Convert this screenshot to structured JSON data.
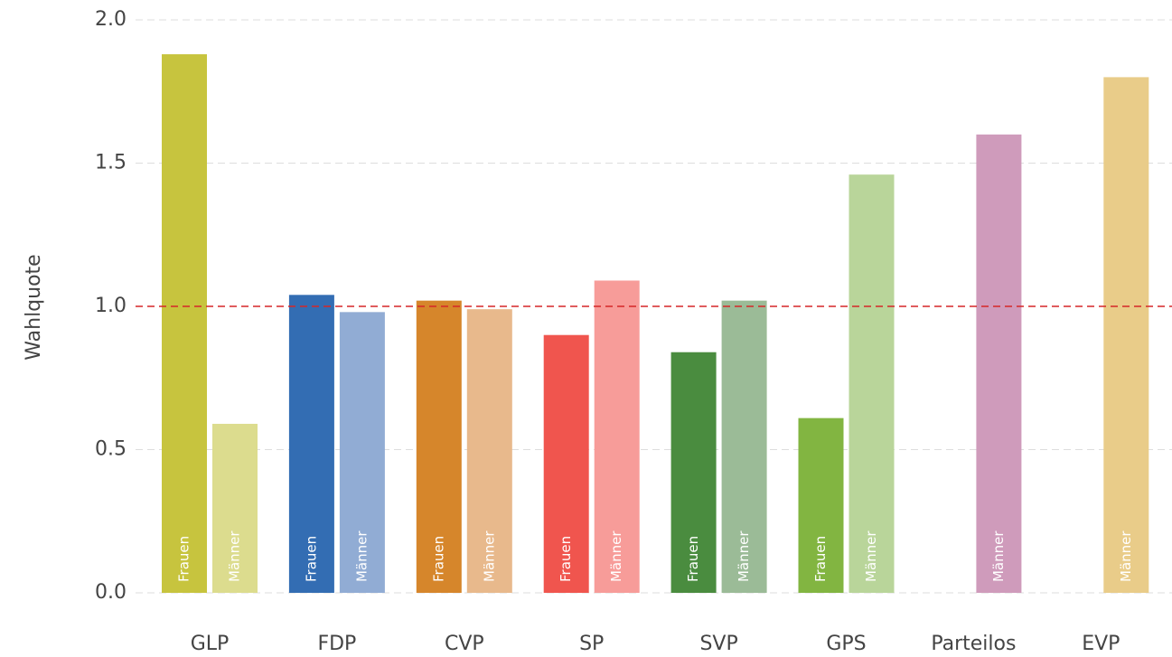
{
  "chart_data": {
    "type": "bar",
    "y_label": "Wahlquote",
    "categories": [
      "GLP",
      "FDP",
      "CVP",
      "SP",
      "SVP",
      "GPS",
      "Parteilos",
      "EVP"
    ],
    "series": [
      {
        "name": "Frauen",
        "colors": [
          "#c7c43e",
          "#336db3",
          "#d6862b",
          "#f0554e",
          "#4a8c3f",
          "#82b541",
          "#cf9bbb",
          "#e9cc89"
        ],
        "values": [
          1.88,
          1.04,
          1.02,
          0.9,
          0.84,
          0.61,
          null,
          null
        ]
      },
      {
        "name": "Männer",
        "colors": [
          "#dcdc8e",
          "#91acd4",
          "#e8b98c",
          "#f79c99",
          "#9bbb97",
          "#b9d59a",
          "#cf9bbb",
          "#e9cc89"
        ],
        "values": [
          0.59,
          0.98,
          0.99,
          1.09,
          1.02,
          1.46,
          1.6,
          1.8
        ]
      }
    ],
    "ylim": [
      0,
      2
    ],
    "yticks": [
      {
        "value": 0,
        "label": "0.0"
      },
      {
        "value": 0.5,
        "label": "0.5"
      },
      {
        "value": 1,
        "label": "1.0"
      },
      {
        "value": 1.5,
        "label": "1.5"
      },
      {
        "value": 2,
        "label": "2.0"
      }
    ],
    "grid": true,
    "reference_line": {
      "value": 1,
      "color": "#d62728"
    }
  }
}
